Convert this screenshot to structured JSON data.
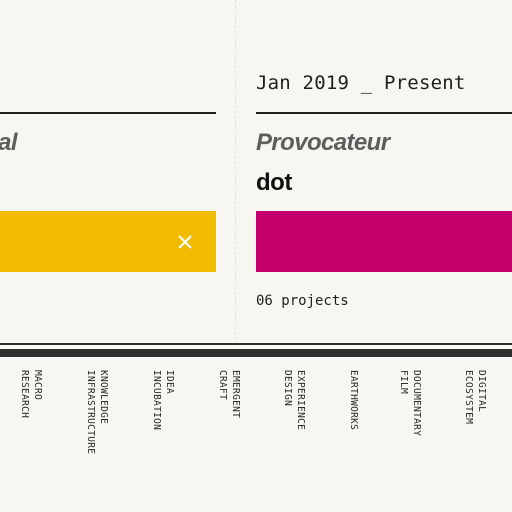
{
  "timeline": {
    "left_entry": {
      "role_fragment": "al",
      "color": "#f0bb00"
    },
    "right_entry": {
      "date_range": "Jan 2019 _ Present",
      "role": "Provocateur",
      "org": "dot",
      "color": "#c4006c",
      "projects": "06 projects"
    },
    "close_icon": "close-icon",
    "categories": [
      {
        "line1": "MACRO",
        "line2": "RESEARCH"
      },
      {
        "line1": "KNOWLEDGE",
        "line2": "INFRASTRUCTURE"
      },
      {
        "line1": "IDEA",
        "line2": "INCUBATION"
      },
      {
        "line1": "EMERGENT",
        "line2": "CRAFT"
      },
      {
        "line1": "EXPERIENCE",
        "line2": "DESIGN"
      },
      {
        "line1": "EARTHWORKS",
        "line2": ""
      },
      {
        "line1": "DOCUMENTARY",
        "line2": "FILM"
      },
      {
        "line1": "DIGITAL",
        "line2": "ECOSYSTEM"
      }
    ]
  }
}
